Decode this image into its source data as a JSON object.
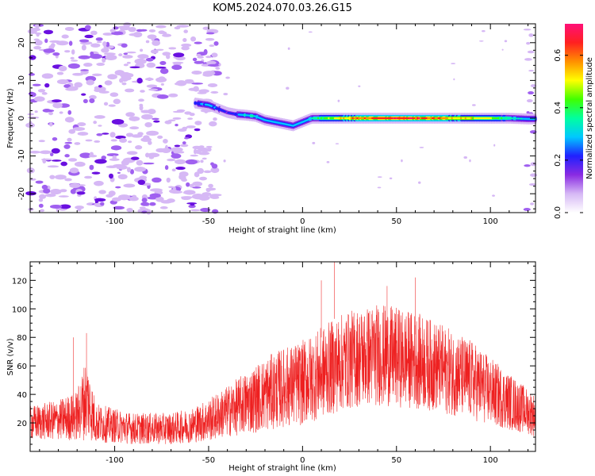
{
  "title": "KOM5.2024.070.03.26.G15",
  "chart_data": [
    {
      "type": "heatmap",
      "title": "KOM5.2024.070.03.26.G15",
      "xlabel": "Height of straight line (km)",
      "ylabel": "Frequency (Hz)",
      "xlim": [
        -145,
        124
      ],
      "ylim": [
        -25,
        25
      ],
      "x_ticks": [
        -100,
        -50,
        0,
        50,
        100
      ],
      "x_tick_labels": [
        "-100",
        "-50",
        "0",
        "50",
        "100"
      ],
      "y_ticks": [
        -20,
        -10,
        0,
        10,
        20
      ],
      "y_tick_labels": [
        "-20",
        "-10",
        "0",
        "10",
        "20"
      ],
      "colorbar": {
        "label": "Normalized spectral amplitude",
        "range": [
          0.0,
          0.72
        ],
        "ticks": [
          0.0,
          0.2,
          0.4,
          0.6
        ],
        "tick_labels": [
          "0.0",
          "0.2",
          "0.4",
          "0.6"
        ],
        "colormap": [
          "#ffffff",
          "#d6b8f5",
          "#8a2be2",
          "#2020ff",
          "#00c8ff",
          "#00ffa0",
          "#40ff00",
          "#ffff00",
          "#ff9000",
          "#ff2020",
          "#ff1078"
        ]
      },
      "noise_region_x": [
        -145,
        -45
      ],
      "ridge": {
        "description_colors": "signal ridge near 0 Hz",
        "x": [
          -57,
          -50,
          -45,
          -40,
          -35,
          -30,
          -25,
          -20,
          -15,
          -10,
          -5,
          0,
          5,
          10,
          20,
          30,
          40,
          50,
          60,
          70,
          80,
          90,
          100,
          110,
          120,
          124
        ],
        "y": [
          4.0,
          3.5,
          2.5,
          1.5,
          1.0,
          0.8,
          0.5,
          -0.5,
          -1.0,
          -1.5,
          -2.0,
          -1.0,
          0.0,
          0.0,
          0.0,
          0.0,
          0.0,
          0.0,
          0.0,
          0.0,
          0.0,
          0.0,
          0.0,
          0.0,
          -0.2,
          -0.2
        ],
        "amplitude": [
          0.25,
          0.3,
          0.25,
          0.2,
          0.25,
          0.35,
          0.35,
          0.3,
          0.3,
          0.3,
          0.3,
          0.3,
          0.35,
          0.45,
          0.55,
          0.65,
          0.68,
          0.72,
          0.7,
          0.65,
          0.6,
          0.55,
          0.5,
          0.4,
          0.3,
          0.3
        ]
      }
    },
    {
      "type": "line",
      "xlabel": "Height of straight line (km)",
      "ylabel": "SNR (v/v)",
      "xlim": [
        -145,
        124
      ],
      "ylim": [
        0,
        133
      ],
      "x_ticks": [
        -100,
        -50,
        0,
        50,
        100
      ],
      "x_tick_labels": [
        "-100",
        "-50",
        "0",
        "50",
        "100"
      ],
      "y_ticks": [
        20,
        40,
        60,
        80,
        100,
        120
      ],
      "y_tick_labels": [
        "20",
        "40",
        "60",
        "80",
        "100",
        "120"
      ],
      "color": "#ee2020",
      "envelope_x": [
        -145,
        -130,
        -120,
        -115,
        -110,
        -100,
        -90,
        -80,
        -70,
        -60,
        -50,
        -40,
        -30,
        -20,
        -10,
        0,
        10,
        20,
        30,
        40,
        50,
        60,
        70,
        80,
        90,
        100,
        110,
        120,
        124
      ],
      "envelope_mean": [
        20,
        22,
        25,
        38,
        20,
        18,
        16,
        16,
        16,
        18,
        22,
        28,
        34,
        40,
        45,
        48,
        55,
        62,
        66,
        68,
        66,
        64,
        60,
        55,
        50,
        42,
        35,
        28,
        25
      ],
      "envelope_spread": [
        12,
        14,
        18,
        30,
        14,
        12,
        11,
        11,
        11,
        12,
        15,
        18,
        22,
        26,
        28,
        30,
        32,
        34,
        35,
        36,
        35,
        34,
        32,
        30,
        28,
        24,
        20,
        16,
        15
      ],
      "peaks": [
        {
          "x": 17,
          "y": 133
        },
        {
          "x": 10,
          "y": 120
        },
        {
          "x": 60,
          "y": 122
        },
        {
          "x": 45,
          "y": 116
        },
        {
          "x": -115,
          "y": 83
        },
        {
          "x": -122,
          "y": 80
        }
      ]
    }
  ]
}
